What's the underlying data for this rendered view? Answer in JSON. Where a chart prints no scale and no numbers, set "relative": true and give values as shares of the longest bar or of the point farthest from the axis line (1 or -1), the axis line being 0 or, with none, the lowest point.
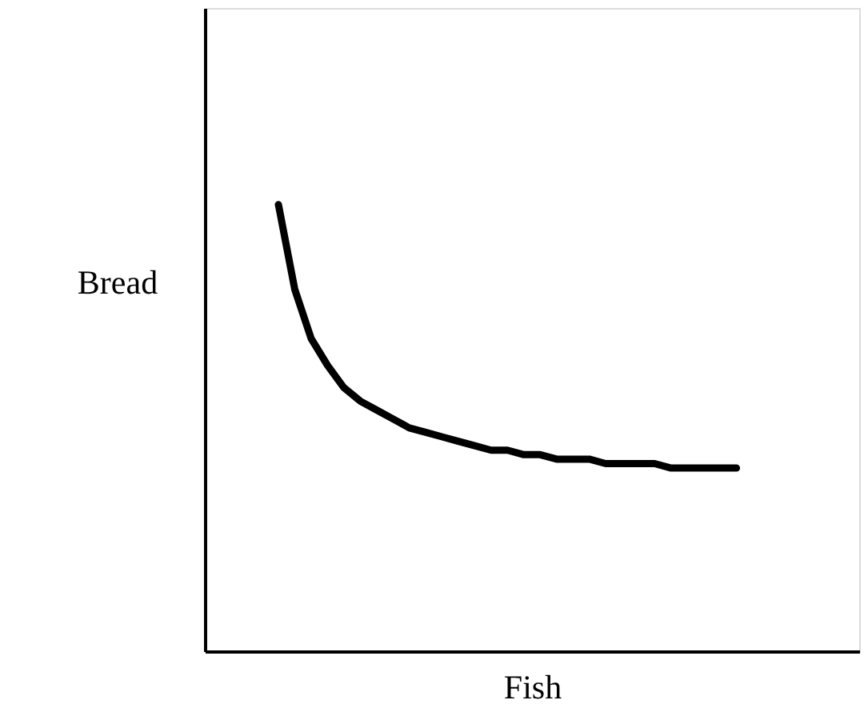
{
  "chart_data": {
    "type": "line",
    "xlabel": "Fish",
    "ylabel": "Bread",
    "relative": true,
    "grid": false,
    "line_style": "solid",
    "color": "#000000",
    "categories": [
      null,
      null,
      null,
      null,
      null,
      null,
      null,
      null,
      null,
      null,
      null,
      null,
      null,
      null,
      null,
      null,
      null,
      null,
      null,
      null,
      null,
      null,
      null,
      null,
      null,
      null,
      null,
      null,
      null,
      null,
      null,
      null,
      null,
      null,
      null,
      null,
      null,
      null,
      null,
      null
    ],
    "values": [
      null,
      null,
      null,
      null,
      1.0,
      0.81,
      0.7,
      0.64,
      0.59,
      0.56,
      0.54,
      0.52,
      0.5,
      0.49,
      0.48,
      0.47,
      0.46,
      0.45,
      0.45,
      0.44,
      0.44,
      0.43,
      0.43,
      0.43,
      0.42,
      0.42,
      0.42,
      0.42,
      0.41,
      0.41,
      0.41,
      0.41,
      0.41,
      null,
      null,
      null,
      null,
      null,
      null,
      null
    ]
  }
}
